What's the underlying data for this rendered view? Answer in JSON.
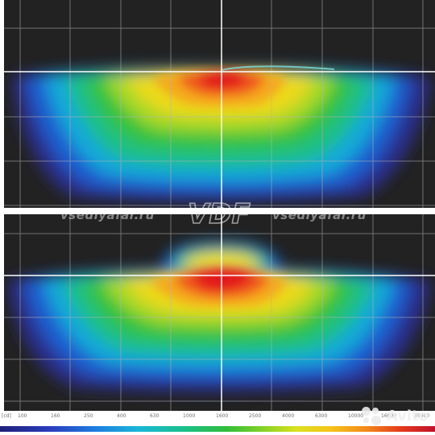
{
  "watermark": {
    "site_left": "vsedlyafar.ru",
    "site_right": "vsedlyafar.ru",
    "logo": "VDF"
  },
  "scale": {
    "unit": "[cd]",
    "ticks": [
      "100",
      "160",
      "250",
      "400",
      "630",
      "1000",
      "1600",
      "2500",
      "4000",
      "6300",
      "10000",
      "16000",
      "25000"
    ]
  },
  "badge": {
    "label": "Avito",
    "icon": "avito-logo-icon"
  },
  "colors": {
    "background": "#222222",
    "grid": "#b4b4b4",
    "gradient_low": "#1e1f7a",
    "gradient_high": "#e3141e"
  }
}
